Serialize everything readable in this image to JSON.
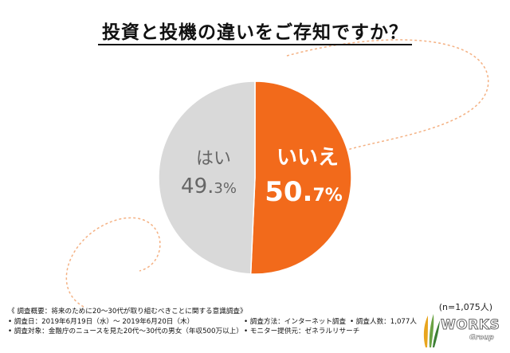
{
  "title": "投資と投機の違いをご存知ですか？",
  "sample_size": "(n=1,075人)",
  "chart_data": {
    "type": "pie",
    "slices": [
      {
        "label": "いいえ",
        "value": 50.7,
        "major": "50.",
        "minor": "7%",
        "color": "#f26a1b"
      },
      {
        "label": "はい",
        "value": 49.3,
        "major": "49.",
        "minor": "3%",
        "color": "#d9d9d9"
      }
    ],
    "start": "12 o'clock, clockwise"
  },
  "notes": {
    "heading": "《 調査概要：将来のために20～30代が取り組むべきことに関する意識調査》",
    "date": "• 調査日：2019年6月19日（水）～ 2019年6月20日（木）",
    "method": "• 調査方法：インターネット調査",
    "respondents": "• 調査人数：1,077人",
    "target": "• 調査対象：金融庁のニュースを見た20代～30代の男女（年収500万以上）",
    "provider": "• モニター提供元：ゼネラルリサーチ"
  },
  "logo": {
    "text": "WORKS",
    "sub": "Group",
    "colors": [
      "#e8a51e",
      "#6aa343",
      "#3d7f35"
    ]
  },
  "decor_color": "#f4b183"
}
